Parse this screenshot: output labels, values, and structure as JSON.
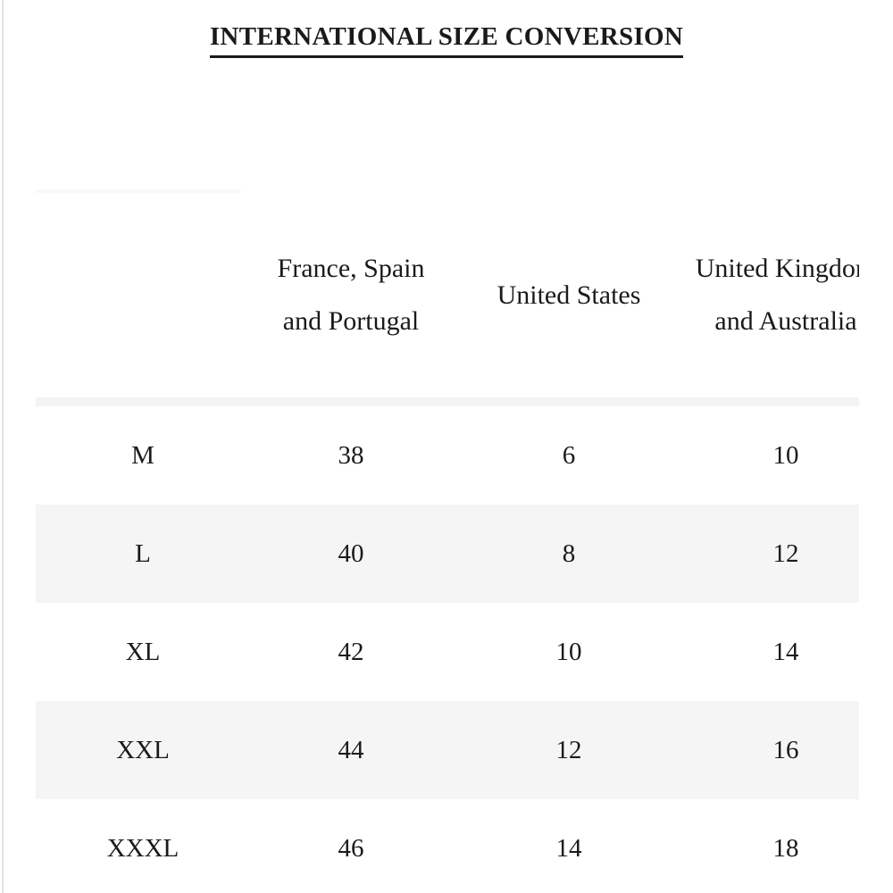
{
  "title": "INTERNATIONAL SIZE CONVERSION",
  "table": {
    "headers": [
      "",
      "France, Spain and Portugal",
      "United States",
      "United Kingdom and Australia"
    ],
    "rows": [
      [
        "M",
        "38",
        "6",
        "10"
      ],
      [
        "L",
        "40",
        "8",
        "12"
      ],
      [
        "XL",
        "42",
        "10",
        "14"
      ],
      [
        "XXL",
        "44",
        "12",
        "16"
      ],
      [
        "XXXL",
        "46",
        "14",
        "18"
      ]
    ]
  },
  "colors": {
    "stripe": "#f5f5f5",
    "text": "#1a1a1a"
  }
}
